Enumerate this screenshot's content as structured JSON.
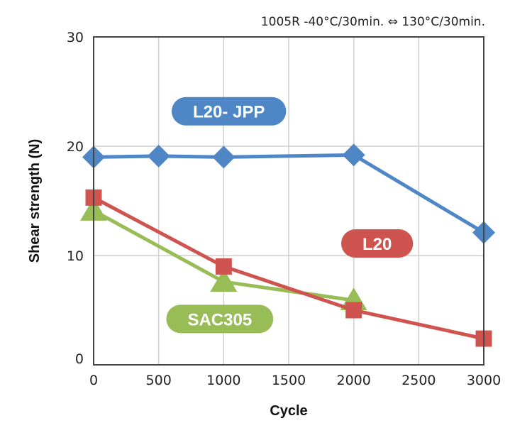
{
  "chart_data": {
    "type": "line",
    "title": "",
    "subtitle": "1005R  -40°C/30min. ⇔ 130°C/30min.",
    "xlabel": "Cycle",
    "ylabel": "Shear strength (N)",
    "xlim": [
      0,
      3000
    ],
    "ylim": [
      0,
      30
    ],
    "xticks": [
      0,
      500,
      1000,
      1500,
      2000,
      2500,
      3000
    ],
    "xtick_labels": [
      "0",
      "500",
      "1000",
      "1500",
      "2000",
      "2500",
      "3000"
    ],
    "yticks": [
      0,
      10,
      20,
      30
    ],
    "ytick_labels": [
      "0",
      "10",
      "20",
      "30"
    ],
    "grid": true,
    "legend": "inline-labels",
    "series": [
      {
        "name": "L20-JPP",
        "label": "L20- JPP",
        "color": "#4f86c6",
        "marker": "diamond",
        "x": [
          0,
          500,
          1000,
          2000,
          3000
        ],
        "values": [
          19.0,
          19.1,
          19.0,
          19.2,
          12.1
        ],
        "label_anchor": {
          "x": 1040,
          "y": 23.2
        }
      },
      {
        "name": "L20",
        "label": "L20",
        "color": "#cf5450",
        "marker": "square",
        "x": [
          0,
          1000,
          2000,
          3000
        ],
        "values": [
          15.3,
          9.0,
          5.0,
          2.4
        ],
        "label_anchor": {
          "x": 2180,
          "y": 11.1
        }
      },
      {
        "name": "SAC305",
        "label": "SAC305",
        "color": "#98bc56",
        "marker": "triangle",
        "x": [
          0,
          1000,
          2000
        ],
        "values": [
          14.1,
          7.6,
          5.9
        ],
        "label_anchor": {
          "x": 970,
          "y": 4.2
        }
      }
    ]
  }
}
